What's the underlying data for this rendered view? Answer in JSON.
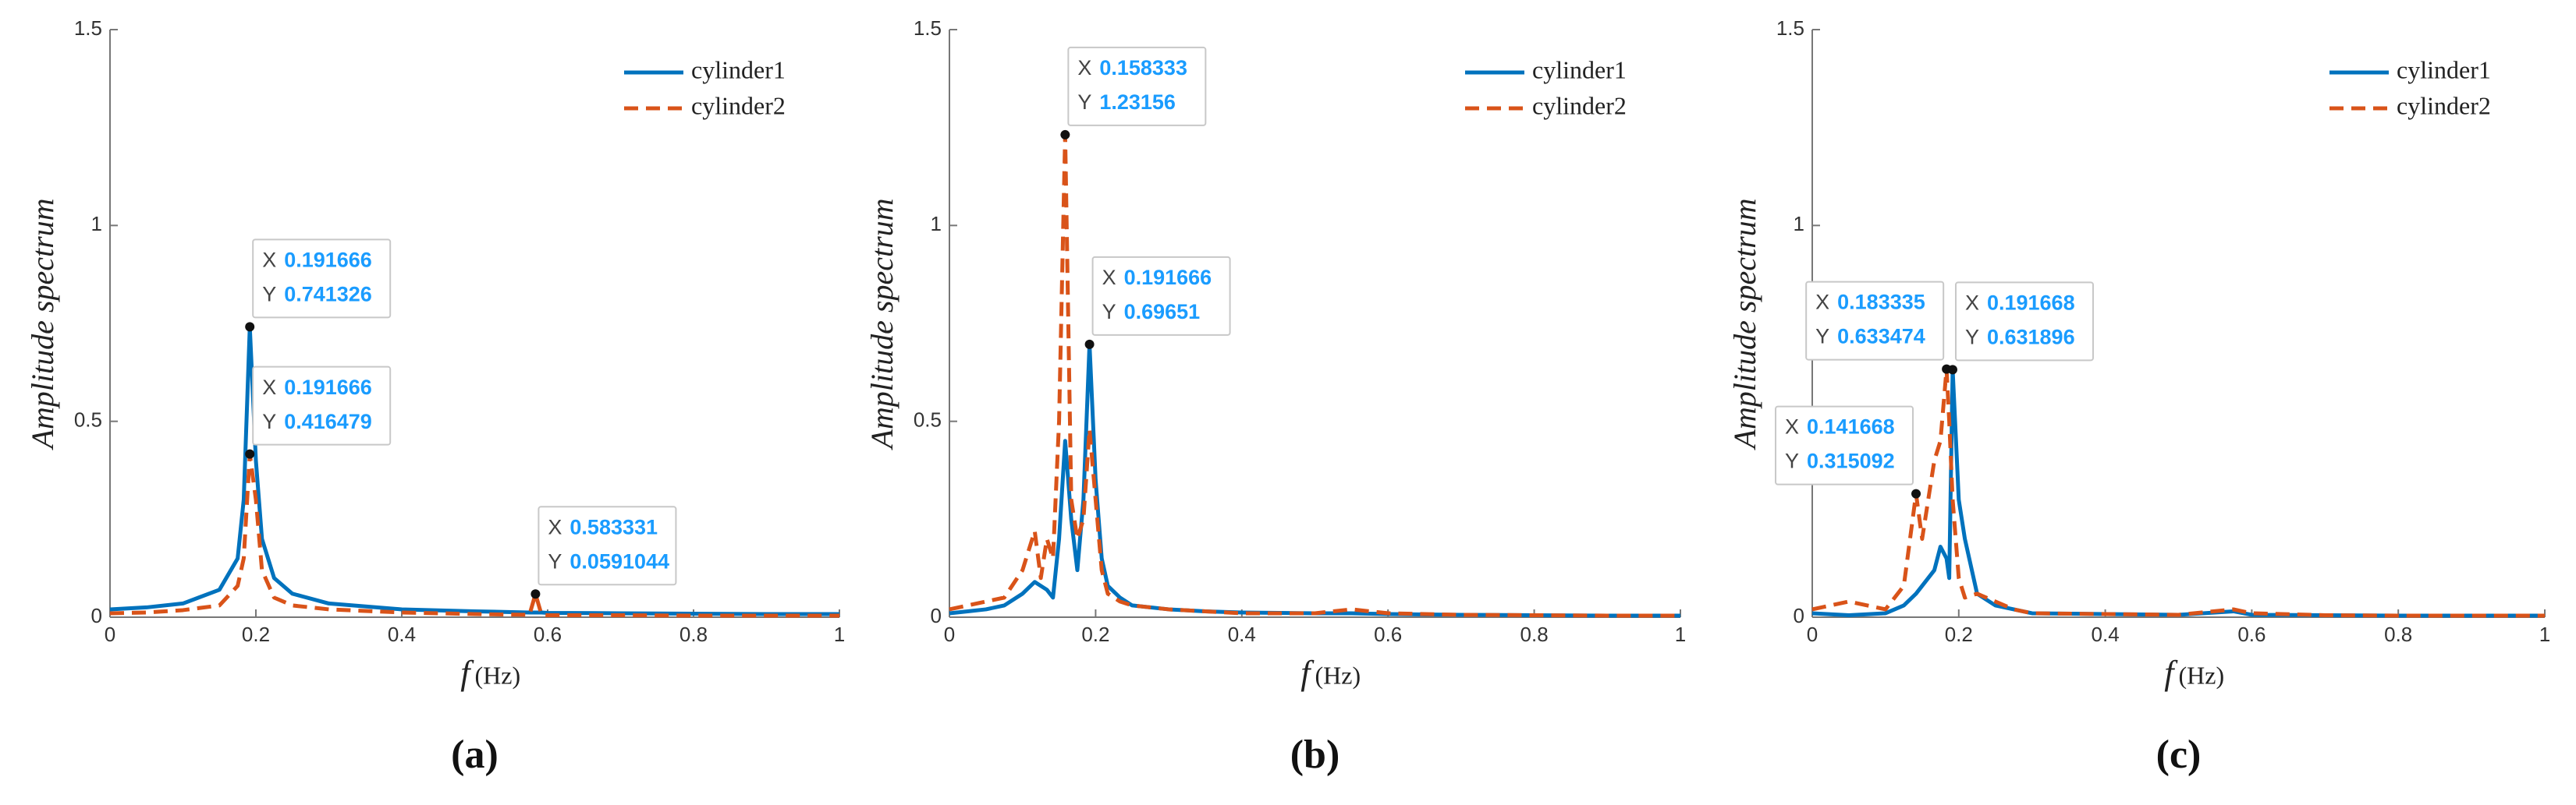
{
  "chart_data": [
    {
      "type": "line",
      "panel_label": "(a)",
      "y_label": "Amplitude spectrum",
      "x_label": "f",
      "x_unit": "(Hz)",
      "xlim": [
        0,
        1
      ],
      "ylim": [
        0,
        1.5
      ],
      "xticks": [
        0,
        0.2,
        0.4,
        0.6,
        0.8,
        1
      ],
      "yticks": [
        0,
        0.5,
        1,
        1.5
      ],
      "legend": "upper right",
      "x": [
        0,
        0.05,
        0.1,
        0.15,
        0.175,
        0.183333,
        0.191666,
        0.2,
        0.208333,
        0.225,
        0.25,
        0.3,
        0.4,
        0.5,
        0.575,
        0.583331,
        0.591666,
        0.6,
        0.7,
        0.8,
        0.9,
        1
      ],
      "series": [
        {
          "name": "cylinder1",
          "color": "#0072BD",
          "dash": false,
          "values": [
            0.02,
            0.025,
            0.035,
            0.07,
            0.15,
            0.3,
            0.741326,
            0.4,
            0.2,
            0.1,
            0.06,
            0.035,
            0.02,
            0.015,
            0.012,
            0.012,
            0.012,
            0.011,
            0.01,
            0.009,
            0.008,
            0.008
          ]
        },
        {
          "name": "cylinder2",
          "color": "#D95319",
          "dash": true,
          "values": [
            0.01,
            0.012,
            0.018,
            0.03,
            0.08,
            0.15,
            0.416479,
            0.3,
            0.12,
            0.05,
            0.03,
            0.02,
            0.012,
            0.008,
            0.006,
            0.0591044,
            0.006,
            0.005,
            0.005,
            0.004,
            0.004,
            0.004
          ]
        }
      ],
      "annotation_labels": [
        "X",
        "Y"
      ],
      "annotations": [
        {
          "x": 0.191666,
          "y": 0.741326
        },
        {
          "x": 0.191666,
          "y": 0.416479
        },
        {
          "x": 0.583331,
          "y": 0.0591044
        }
      ]
    },
    {
      "type": "line",
      "panel_label": "(b)",
      "y_label": "Amplitude spectrum",
      "x_label": "f",
      "x_unit": "(Hz)",
      "xlim": [
        0,
        1
      ],
      "ylim": [
        0,
        1.5
      ],
      "xticks": [
        0,
        0.2,
        0.4,
        0.6,
        0.8,
        1
      ],
      "yticks": [
        0,
        0.5,
        1,
        1.5
      ],
      "legend": "upper right",
      "x": [
        0,
        0.025,
        0.05,
        0.075,
        0.1,
        0.116666,
        0.125,
        0.133333,
        0.141666,
        0.15,
        0.158333,
        0.166666,
        0.175,
        0.183333,
        0.191666,
        0.2,
        0.208333,
        0.216666,
        0.233333,
        0.25,
        0.3,
        0.35,
        0.4,
        0.5,
        0.55,
        0.6,
        0.7,
        0.8,
        0.9,
        1
      ],
      "series": [
        {
          "name": "cylinder1",
          "color": "#0072BD",
          "dash": false,
          "values": [
            0.01,
            0.015,
            0.02,
            0.03,
            0.06,
            0.09,
            0.08,
            0.07,
            0.05,
            0.2,
            0.45,
            0.25,
            0.12,
            0.3,
            0.69651,
            0.35,
            0.15,
            0.08,
            0.05,
            0.03,
            0.02,
            0.015,
            0.012,
            0.01,
            0.01,
            0.008,
            0.006,
            0.005,
            0.004,
            0.004
          ]
        },
        {
          "name": "cylinder2",
          "color": "#D95319",
          "dash": true,
          "values": [
            0.02,
            0.03,
            0.04,
            0.05,
            0.12,
            0.22,
            0.1,
            0.2,
            0.15,
            0.5,
            1.23156,
            0.3,
            0.2,
            0.25,
            0.48,
            0.3,
            0.12,
            0.06,
            0.04,
            0.03,
            0.02,
            0.015,
            0.01,
            0.01,
            0.02,
            0.01,
            0.006,
            0.005,
            0.004,
            0.004
          ]
        }
      ],
      "annotation_labels": [
        "X",
        "Y"
      ],
      "annotations": [
        {
          "x": 0.158333,
          "y": 1.23156
        },
        {
          "x": 0.191666,
          "y": 0.69651
        }
      ]
    },
    {
      "type": "line",
      "panel_label": "(c)",
      "y_label": "Amplitude spectrum",
      "x_label": "f",
      "x_unit": "(Hz)",
      "xlim": [
        0,
        1
      ],
      "ylim": [
        0,
        1.5
      ],
      "xticks": [
        0,
        0.2,
        0.4,
        0.6,
        0.8,
        1
      ],
      "yticks": [
        0,
        0.5,
        1,
        1.5
      ],
      "legend": "upper right",
      "x": [
        0,
        0.05,
        0.1,
        0.125,
        0.141668,
        0.15,
        0.166667,
        0.175,
        0.183335,
        0.187,
        0.191668,
        0.2,
        0.208333,
        0.225,
        0.25,
        0.275,
        0.3,
        0.4,
        0.5,
        0.575,
        0.6,
        0.7,
        0.8,
        0.9,
        1
      ],
      "series": [
        {
          "name": "cylinder1",
          "color": "#0072BD",
          "dash": false,
          "values": [
            0.01,
            0.005,
            0.01,
            0.03,
            0.06,
            0.08,
            0.12,
            0.18,
            0.15,
            0.1,
            0.631896,
            0.3,
            0.2,
            0.06,
            0.03,
            0.02,
            0.01,
            0.008,
            0.006,
            0.015,
            0.006,
            0.005,
            0.004,
            0.004,
            0.004
          ]
        },
        {
          "name": "cylinder2",
          "color": "#D95319",
          "dash": true,
          "values": [
            0.02,
            0.04,
            0.02,
            0.08,
            0.315092,
            0.2,
            0.4,
            0.45,
            0.633474,
            0.5,
            0.3,
            0.1,
            0.05,
            0.06,
            0.04,
            0.02,
            0.01,
            0.008,
            0.006,
            0.02,
            0.01,
            0.005,
            0.004,
            0.004,
            0.004
          ]
        }
      ],
      "annotation_labels": [
        "X",
        "Y"
      ],
      "annotations": [
        {
          "x": 0.183335,
          "y": 0.633474
        },
        {
          "x": 0.191668,
          "y": 0.631896
        },
        {
          "x": 0.141668,
          "y": 0.315092
        }
      ]
    }
  ]
}
